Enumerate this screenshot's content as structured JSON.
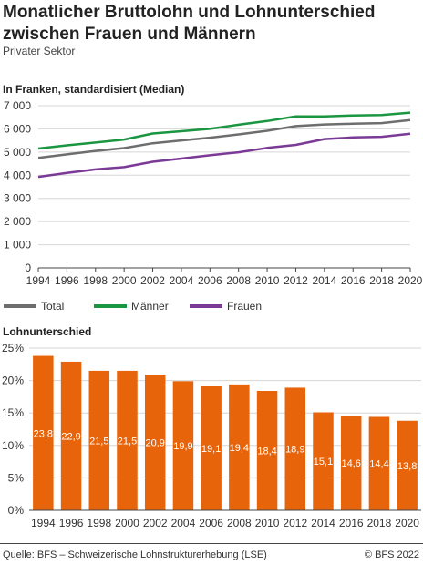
{
  "title": "Monatlicher Bruttolohn und Lohnunterschied zwischen Frauen und Männern",
  "subtitle": "Privater Sektor",
  "source": "Quelle: BFS – Schweizerische Lohnstrukturerhebung (LSE)",
  "copyright": "© BFS 2022",
  "chart_data": [
    {
      "type": "line",
      "title": "In Franken, standardisiert (Median)",
      "x": [
        1994,
        1996,
        1998,
        2000,
        2002,
        2004,
        2006,
        2008,
        2010,
        2012,
        2014,
        2016,
        2018,
        2020
      ],
      "ylim": [
        0,
        7000
      ],
      "yticks": [
        "0",
        "1 000",
        "2 000",
        "3 000",
        "4 000",
        "5 000",
        "6 000",
        "7 000"
      ],
      "grid": true,
      "legend_position": "bottom",
      "series": [
        {
          "name": "Total",
          "color": "#6e6e6e",
          "values": [
            4750,
            4900,
            5050,
            5170,
            5380,
            5500,
            5620,
            5760,
            5920,
            6120,
            6190,
            6220,
            6250,
            6380
          ]
        },
        {
          "name": "Männer",
          "color": "#1a9641",
          "values": [
            5150,
            5290,
            5410,
            5540,
            5800,
            5900,
            6000,
            6180,
            6340,
            6540,
            6540,
            6580,
            6600,
            6700
          ]
        },
        {
          "name": "Frauen",
          "color": "#7b3a96",
          "values": [
            3930,
            4100,
            4250,
            4350,
            4580,
            4720,
            4860,
            4990,
            5180,
            5310,
            5560,
            5630,
            5660,
            5790
          ]
        }
      ]
    },
    {
      "type": "bar",
      "title": "Lohnunterschied",
      "categories": [
        "1994",
        "1996",
        "1998",
        "2000",
        "2002",
        "2004",
        "2006",
        "2008",
        "2010",
        "2012",
        "2014",
        "2016",
        "2018",
        "2020"
      ],
      "values": [
        23.8,
        22.9,
        21.5,
        21.5,
        20.9,
        19.9,
        19.1,
        19.4,
        18.4,
        18.9,
        15.1,
        14.6,
        14.4,
        13.8
      ],
      "labels": [
        "23,8",
        "22,9",
        "21,5",
        "21,5",
        "20,9",
        "19,9",
        "19,1",
        "19,4",
        "18,4",
        "18,9",
        "15,1",
        "14,6",
        "14,4",
        "13,8"
      ],
      "ylim": [
        0,
        25
      ],
      "yticks": [
        "0%",
        "5%",
        "10%",
        "15%",
        "20%",
        "25%"
      ],
      "color": "#e8640a",
      "grid": true
    }
  ]
}
